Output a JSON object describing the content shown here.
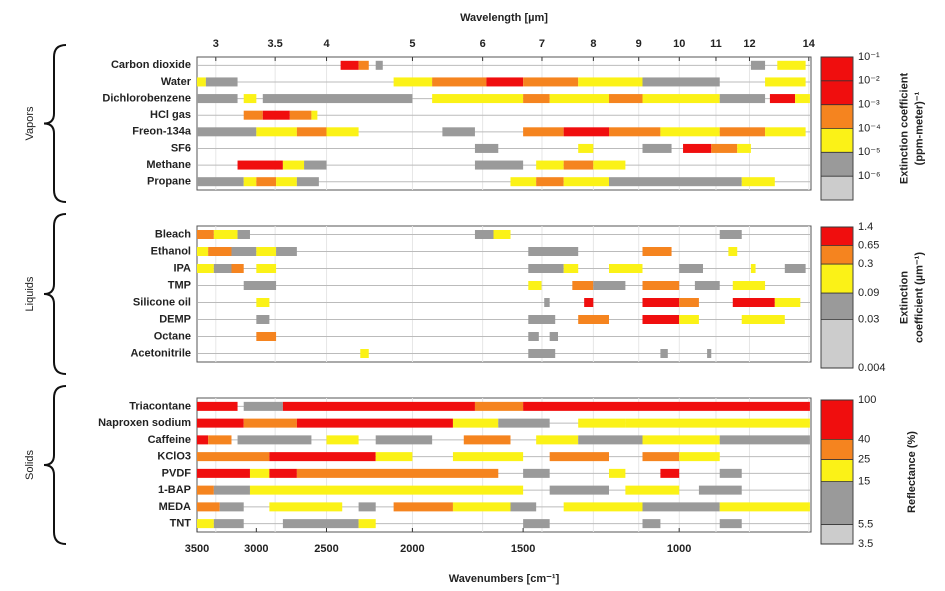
{
  "chart_data": [
    {
      "type": "band",
      "group": "Vapors",
      "x2label": "Wavelength [µm]",
      "x2lim": [
        2.857,
        14.08
      ],
      "x2ticks": [
        3,
        3.5,
        4,
        5,
        6,
        7,
        8,
        9,
        10,
        11,
        12,
        14
      ],
      "xlim": [
        3500,
        710
      ],
      "grid": true,
      "colorbar": {
        "title": [
          "Extinction coefficient",
          "(ppm-meter)⁻¹"
        ],
        "scale": "log",
        "ylim": [
          1e-07,
          0.1
        ],
        "ticks": [
          {
            "value": 1e-06,
            "label": "10⁻⁶"
          },
          {
            "value": 1e-05,
            "label": "10⁻⁵"
          },
          {
            "value": 0.0001,
            "label": "10⁻⁴"
          },
          {
            "value": 0.001,
            "label": "10⁻³"
          },
          {
            "value": 0.01,
            "label": "10⁻²"
          },
          {
            "value": 0.1,
            "label": "10⁻¹"
          }
        ],
        "colors": [
          "#cccccc",
          "#9a9a9a",
          "#fbf217",
          "#f5841f",
          "#f00e0e",
          "#f00e0e"
        ]
      },
      "series": [
        {
          "name": "Carbon dioxide",
          "bands": [
            [
              2410,
              2300,
              0.005
            ],
            [
              2300,
              2240,
              0.0005
            ],
            [
              2200,
              2160,
              5e-06
            ],
            [
              830,
              800,
              5e-06
            ],
            [
              775,
              720,
              5e-05
            ]
          ]
        },
        {
          "name": "Water",
          "bands": [
            [
              3500,
              3420,
              5e-05
            ],
            [
              3420,
              3150,
              5e-06
            ],
            [
              2100,
              1900,
              5e-05
            ],
            [
              1900,
              1650,
              0.0005
            ],
            [
              1650,
              1500,
              0.005
            ],
            [
              1500,
              1300,
              0.0005
            ],
            [
              1300,
              1100,
              5e-05
            ],
            [
              1100,
              900,
              5e-06
            ],
            [
              800,
              720,
              5e-05
            ]
          ]
        },
        {
          "name": "Dichlorobenzene",
          "bands": [
            [
              3500,
              3150,
              5e-06
            ],
            [
              3100,
              3000,
              5e-05
            ],
            [
              2950,
              2000,
              5e-06
            ],
            [
              1900,
              1500,
              5e-05
            ],
            [
              1500,
              1400,
              0.0005
            ],
            [
              1400,
              1200,
              5e-05
            ],
            [
              1200,
              1100,
              0.0005
            ],
            [
              1100,
              900,
              5e-05
            ],
            [
              900,
              800,
              5e-06
            ],
            [
              790,
              740,
              0.005
            ],
            [
              740,
              712,
              5e-05
            ]
          ]
        },
        {
          "name": "HCl gas",
          "bands": [
            [
              3100,
              2950,
              0.0005
            ],
            [
              2950,
              2750,
              0.005
            ],
            [
              2750,
              2600,
              0.0005
            ],
            [
              2600,
              2560,
              5e-05
            ]
          ]
        },
        {
          "name": "Freon-134a",
          "bands": [
            [
              3500,
              3000,
              5e-06
            ],
            [
              3000,
              2700,
              5e-05
            ],
            [
              2700,
              2500,
              0.0005
            ],
            [
              2500,
              2300,
              5e-05
            ],
            [
              1850,
              1700,
              5e-06
            ],
            [
              1500,
              1350,
              0.0005
            ],
            [
              1350,
              1200,
              0.005
            ],
            [
              1200,
              1050,
              0.0005
            ],
            [
              1050,
              900,
              5e-05
            ],
            [
              900,
              800,
              0.0005
            ],
            [
              800,
              720,
              5e-05
            ]
          ]
        },
        {
          "name": "SF6",
          "bands": [
            [
              1700,
              1600,
              5e-06
            ],
            [
              1300,
              1250,
              5e-05
            ],
            [
              1100,
              1020,
              5e-06
            ],
            [
              990,
              920,
              0.005
            ],
            [
              920,
              860,
              0.0005
            ],
            [
              860,
              830,
              5e-05
            ]
          ]
        },
        {
          "name": "Methane",
          "bands": [
            [
              3150,
              2800,
              0.005
            ],
            [
              2800,
              2650,
              5e-05
            ],
            [
              2650,
              2500,
              5e-06
            ],
            [
              1700,
              1500,
              5e-06
            ],
            [
              1450,
              1350,
              5e-05
            ],
            [
              1350,
              1250,
              0.0005
            ],
            [
              1250,
              1150,
              5e-05
            ]
          ]
        },
        {
          "name": "Propane",
          "bands": [
            [
              3500,
              3100,
              5e-06
            ],
            [
              3100,
              3000,
              5e-05
            ],
            [
              3000,
              2850,
              0.0005
            ],
            [
              2850,
              2700,
              5e-05
            ],
            [
              2700,
              2550,
              5e-06
            ],
            [
              1550,
              1450,
              5e-05
            ],
            [
              1450,
              1350,
              0.0005
            ],
            [
              1350,
              1200,
              5e-05
            ],
            [
              1200,
              850,
              5e-06
            ],
            [
              850,
              780,
              5e-05
            ]
          ]
        }
      ]
    },
    {
      "type": "band",
      "group": "Liquids",
      "xlim": [
        3500,
        710
      ],
      "grid": true,
      "colorbar": {
        "title": [
          "Extinction",
          "coefficient (µm⁻¹)"
        ],
        "scale": "log",
        "ylim": [
          0.004,
          1.4
        ],
        "ticks": [
          0.004,
          0.03,
          0.09,
          0.3,
          0.65,
          1.4
        ],
        "colors": [
          "#cccccc",
          "#9a9a9a",
          "#fbf217",
          "#f5841f",
          "#f00e0e"
        ]
      },
      "series": [
        {
          "name": "Bleach",
          "bands": [
            [
              3500,
              3350,
              0.45
            ],
            [
              3350,
              3150,
              0.15
            ],
            [
              3150,
              3050,
              0.05
            ],
            [
              1700,
              1620,
              0.05
            ],
            [
              1620,
              1550,
              0.15
            ],
            [
              900,
              850,
              0.05
            ]
          ]
        },
        {
          "name": "Ethanol",
          "bands": [
            [
              3500,
              3400,
              0.15
            ],
            [
              3400,
              3200,
              0.45
            ],
            [
              3200,
              3000,
              0.05
            ],
            [
              3000,
              2850,
              0.15
            ],
            [
              2850,
              2700,
              0.05
            ],
            [
              1480,
              1300,
              0.05
            ],
            [
              1100,
              1020,
              0.45
            ],
            [
              880,
              860,
              0.15
            ]
          ]
        },
        {
          "name": "IPA",
          "bands": [
            [
              3500,
              3350,
              0.15
            ],
            [
              3350,
              3200,
              0.05
            ],
            [
              3200,
              3100,
              0.45
            ],
            [
              3000,
              2850,
              0.15
            ],
            [
              1480,
              1350,
              0.05
            ],
            [
              1350,
              1300,
              0.15
            ],
            [
              1200,
              1100,
              0.15
            ],
            [
              1000,
              940,
              0.05
            ],
            [
              830,
              820,
              0.15
            ],
            [
              760,
              720,
              0.05
            ]
          ]
        },
        {
          "name": "TMP",
          "bands": [
            [
              3100,
              2850,
              0.05
            ],
            [
              1480,
              1430,
              0.15
            ],
            [
              1320,
              1250,
              0.45
            ],
            [
              1250,
              1150,
              0.05
            ],
            [
              1100,
              1000,
              0.45
            ],
            [
              960,
              900,
              0.05
            ],
            [
              870,
              800,
              0.15
            ]
          ]
        },
        {
          "name": "Silicone oil",
          "bands": [
            [
              3000,
              2900,
              0.15
            ],
            [
              1420,
              1400,
              0.05
            ],
            [
              1280,
              1250,
              1
            ],
            [
              1100,
              1000,
              1
            ],
            [
              1000,
              950,
              0.45
            ],
            [
              870,
              780,
              1
            ],
            [
              780,
              730,
              0.15
            ]
          ]
        },
        {
          "name": "DEMP",
          "bands": [
            [
              3000,
              2900,
              0.05
            ],
            [
              1480,
              1380,
              0.05
            ],
            [
              1300,
              1200,
              0.45
            ],
            [
              1100,
              1000,
              1
            ],
            [
              1000,
              950,
              0.15
            ],
            [
              850,
              760,
              0.15
            ]
          ]
        },
        {
          "name": "Octane",
          "bands": [
            [
              3000,
              2850,
              0.45
            ],
            [
              1480,
              1440,
              0.05
            ],
            [
              1400,
              1370,
              0.05
            ]
          ]
        },
        {
          "name": "Acetonitrile",
          "bands": [
            [
              2290,
              2240,
              0.15
            ],
            [
              1480,
              1380,
              0.05
            ],
            [
              1050,
              1030,
              0.05
            ],
            [
              930,
              920,
              0.05
            ]
          ]
        }
      ]
    },
    {
      "type": "band",
      "group": "Solids",
      "xlabel": "Wavenumbers [cm⁻¹]",
      "xlim": [
        3500,
        710
      ],
      "xticks": [
        3500,
        3000,
        2500,
        2000,
        1500,
        1000
      ],
      "grid": true,
      "colorbar": {
        "title": [
          "Reflectance (%)"
        ],
        "scale": "log",
        "ylim": [
          3.5,
          100
        ],
        "ticks": [
          3.5,
          5.5,
          15,
          25,
          40,
          100
        ],
        "colors": [
          "#cccccc",
          "#9a9a9a",
          "#fbf217",
          "#f5841f",
          "#f00e0e"
        ]
      },
      "series": [
        {
          "name": "Triacontane",
          "bands": [
            [
              3500,
              3150,
              60
            ],
            [
              3100,
              2800,
              10
            ],
            [
              2800,
              1700,
              60
            ],
            [
              1700,
              1500,
              30
            ],
            [
              1500,
              712,
              60
            ]
          ]
        },
        {
          "name": "Naproxen sodium",
          "bands": [
            [
              3500,
              3100,
              60
            ],
            [
              3100,
              2700,
              30
            ],
            [
              2700,
              1800,
              60
            ],
            [
              1800,
              1600,
              20
            ],
            [
              1600,
              1400,
              10
            ],
            [
              1300,
              1150,
              20
            ],
            [
              1150,
              712,
              20
            ]
          ]
        },
        {
          "name": "Caffeine",
          "bands": [
            [
              3500,
              3400,
              60
            ],
            [
              3400,
              3200,
              30
            ],
            [
              3150,
              2600,
              10
            ],
            [
              2500,
              2300,
              20
            ],
            [
              2200,
              1900,
              10
            ],
            [
              1750,
              1550,
              30
            ],
            [
              1450,
              1300,
              20
            ],
            [
              1300,
              1100,
              10
            ],
            [
              1100,
              900,
              20
            ],
            [
              900,
              712,
              10
            ]
          ]
        },
        {
          "name": "KClO3",
          "bands": [
            [
              3500,
              2900,
              30
            ],
            [
              2900,
              2200,
              60
            ],
            [
              2200,
              2000,
              20
            ],
            [
              1800,
              1500,
              20
            ],
            [
              1400,
              1200,
              30
            ],
            [
              1100,
              1000,
              30
            ],
            [
              1000,
              900,
              20
            ]
          ]
        },
        {
          "name": "PVDF",
          "bands": [
            [
              3500,
              3050,
              60
            ],
            [
              3050,
              2900,
              20
            ],
            [
              2900,
              2700,
              60
            ],
            [
              2700,
              1600,
              30
            ],
            [
              1500,
              1400,
              10
            ],
            [
              1200,
              1150,
              20
            ],
            [
              1050,
              1000,
              60
            ],
            [
              900,
              850,
              10
            ]
          ]
        },
        {
          "name": "1-BAP",
          "bands": [
            [
              3500,
              3350,
              30
            ],
            [
              3350,
              3050,
              10
            ],
            [
              3050,
              1500,
              20
            ],
            [
              1400,
              1200,
              10
            ],
            [
              1150,
              1000,
              20
            ],
            [
              950,
              850,
              10
            ]
          ]
        },
        {
          "name": "MEDA",
          "bands": [
            [
              3500,
              3300,
              30
            ],
            [
              3300,
              3100,
              10
            ],
            [
              2900,
              2400,
              20
            ],
            [
              2300,
              2200,
              10
            ],
            [
              2100,
              1800,
              30
            ],
            [
              1800,
              1550,
              20
            ],
            [
              1550,
              1450,
              10
            ],
            [
              1350,
              1100,
              20
            ],
            [
              1100,
              900,
              10
            ],
            [
              900,
              712,
              20
            ]
          ]
        },
        {
          "name": "TNT",
          "bands": [
            [
              3500,
              3350,
              20
            ],
            [
              3350,
              3100,
              10
            ],
            [
              2800,
              2300,
              10
            ],
            [
              2300,
              2200,
              20
            ],
            [
              1500,
              1400,
              10
            ],
            [
              1100,
              1050,
              10
            ],
            [
              900,
              850,
              10
            ]
          ]
        }
      ]
    }
  ]
}
